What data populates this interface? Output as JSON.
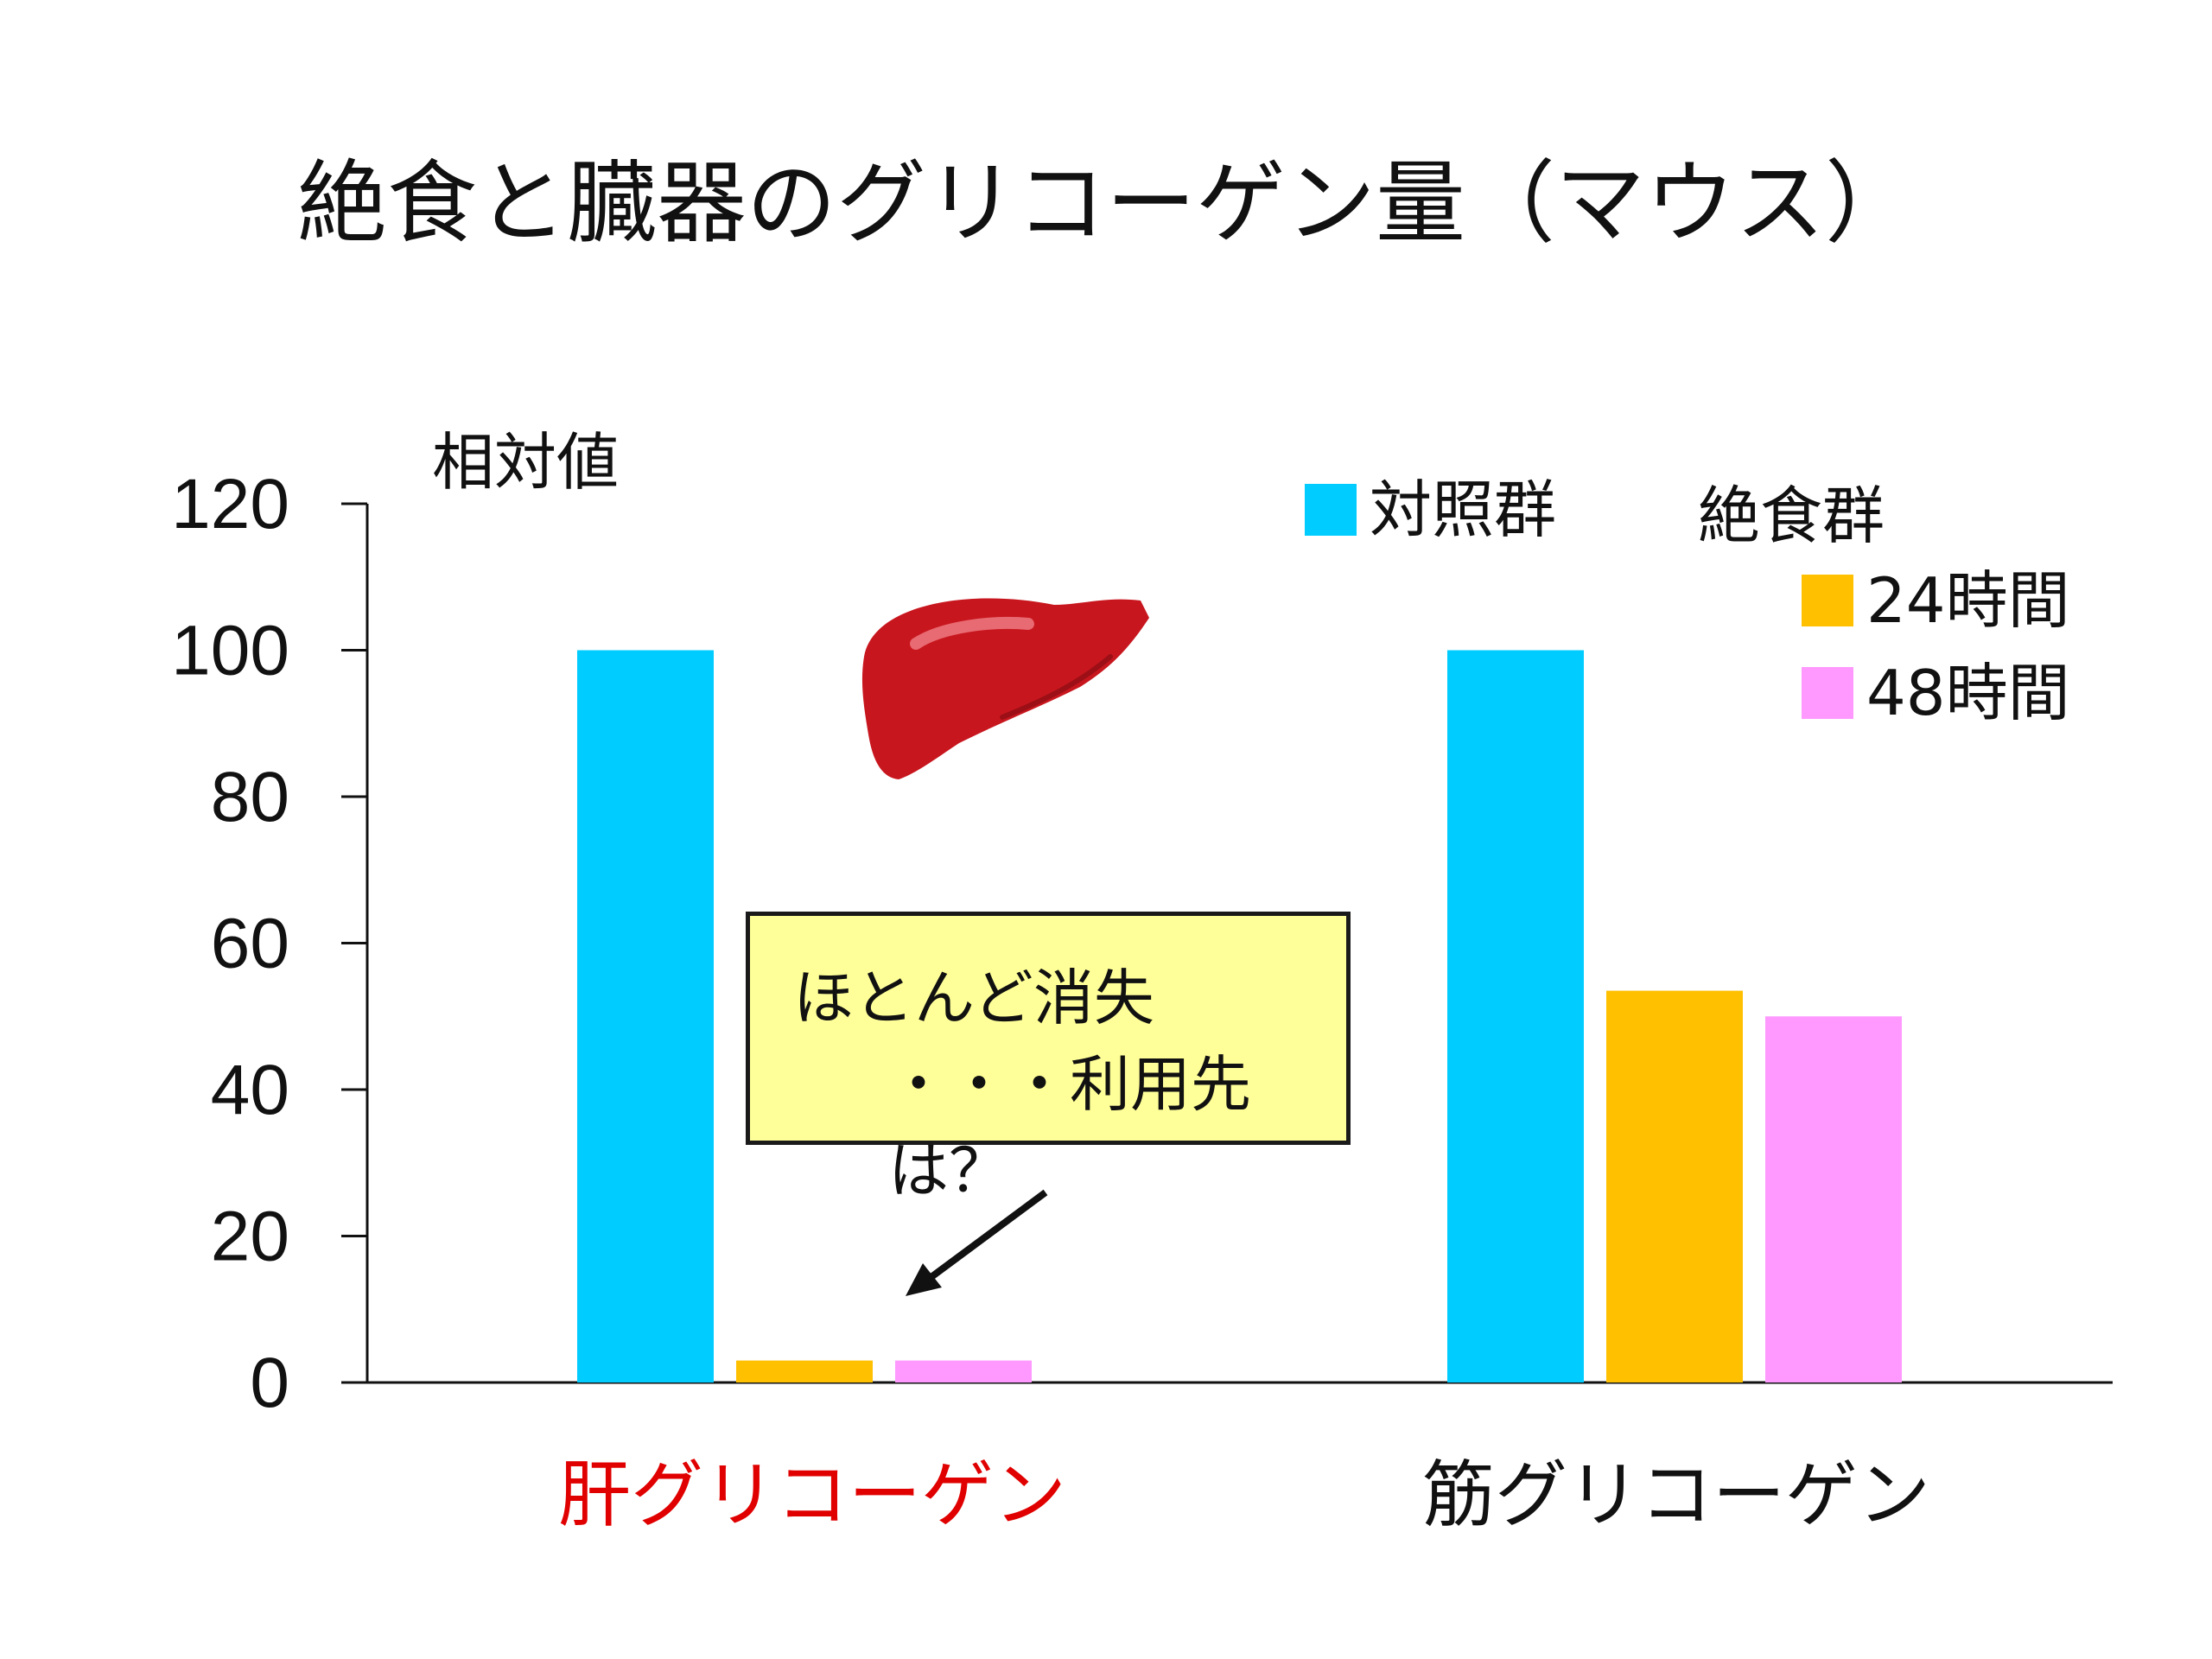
{
  "title": "絶食と臓器のグリコーゲン量（マウス）",
  "y_axis_label": "相対値",
  "legend": {
    "group_control": "対照群",
    "group_fasting": "絶食群",
    "entries": [
      {
        "label": "対照群",
        "color": "#00ccff"
      },
      {
        "label": "24時間",
        "color": "#ffc000"
      },
      {
        "label": "48時間",
        "color": "#ff99ff"
      }
    ]
  },
  "callout": {
    "line1": "ほとんど消失",
    "line2": "・・・利用先は？"
  },
  "category_colors": [
    "#e00000",
    "#111111"
  ],
  "chart_data": {
    "type": "bar",
    "title": "絶食と臓器のグリコーゲン量（マウス）",
    "ylabel": "相対値",
    "xlabel": "",
    "ylim": [
      0,
      120
    ],
    "yticks": [
      0,
      20,
      40,
      60,
      80,
      100,
      120
    ],
    "categories": [
      "肝グリコーゲン",
      "筋グリコーゲン"
    ],
    "series": [
      {
        "name": "対照群",
        "color": "#00ccff",
        "values": [
          100,
          100
        ]
      },
      {
        "name": "24時間",
        "color": "#ffc000",
        "values": [
          3,
          53.5
        ]
      },
      {
        "name": "48時間",
        "color": "#ff99ff",
        "values": [
          3,
          50
        ]
      }
    ],
    "grid": false,
    "legend": "top-right"
  }
}
